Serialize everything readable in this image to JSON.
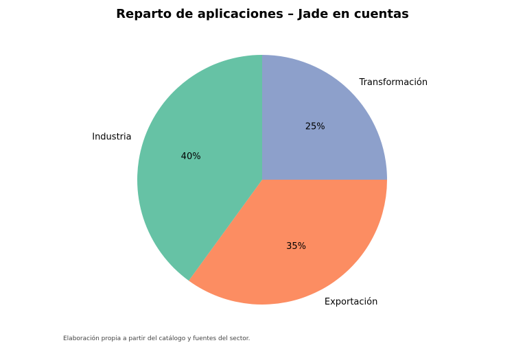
{
  "chart_data": {
    "type": "pie",
    "title": "Reparto de aplicaciones – Jade en cuentas",
    "slices": [
      {
        "label": "Transformación",
        "value": 25,
        "pct_label": "25%",
        "color": "#8da0cb"
      },
      {
        "label": "Exportación",
        "value": 35,
        "pct_label": "35%",
        "color": "#fc8d62"
      },
      {
        "label": "Industria",
        "value": 40,
        "pct_label": "40%",
        "color": "#66c2a5"
      }
    ],
    "start_angle_deg": 90,
    "direction": "clockwise",
    "legend": "none"
  },
  "footer": {
    "source": "Elaboración propia a partir del catálogo y fuentes del sector."
  }
}
